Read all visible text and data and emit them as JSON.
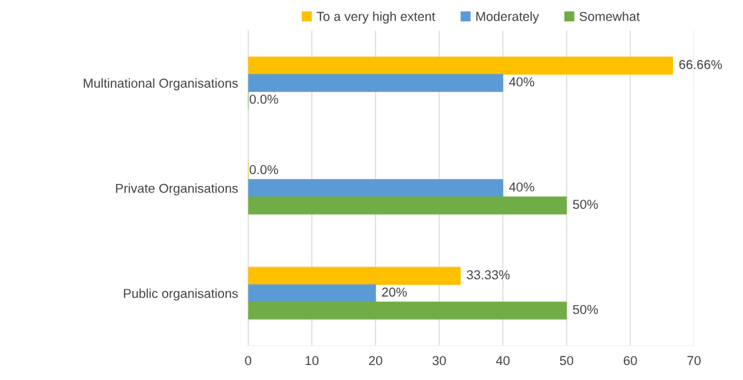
{
  "chart_data": {
    "type": "bar",
    "orientation": "horizontal",
    "categories": [
      "Multinational Organisations",
      "Private Organisations",
      "Public organisations"
    ],
    "series": [
      {
        "name": "To a very high extent",
        "color": "#ffc000",
        "values": [
          66.66,
          0,
          33.33
        ],
        "value_labels": [
          "66.66%",
          "0.0%",
          "33.33%"
        ]
      },
      {
        "name": "Moderately",
        "color": "#5b9bd5",
        "values": [
          40,
          40,
          20
        ],
        "value_labels": [
          "40%",
          "40%",
          "20%"
        ]
      },
      {
        "name": "Somewhat",
        "color": "#70ad47",
        "values": [
          0,
          50,
          50
        ],
        "value_labels": [
          "0.0%",
          "50%",
          "50%"
        ]
      }
    ],
    "xlim": [
      0,
      70
    ],
    "xticks": [
      0,
      10,
      20,
      30,
      40,
      50,
      60,
      70
    ],
    "grid": "x",
    "legend": "top"
  }
}
